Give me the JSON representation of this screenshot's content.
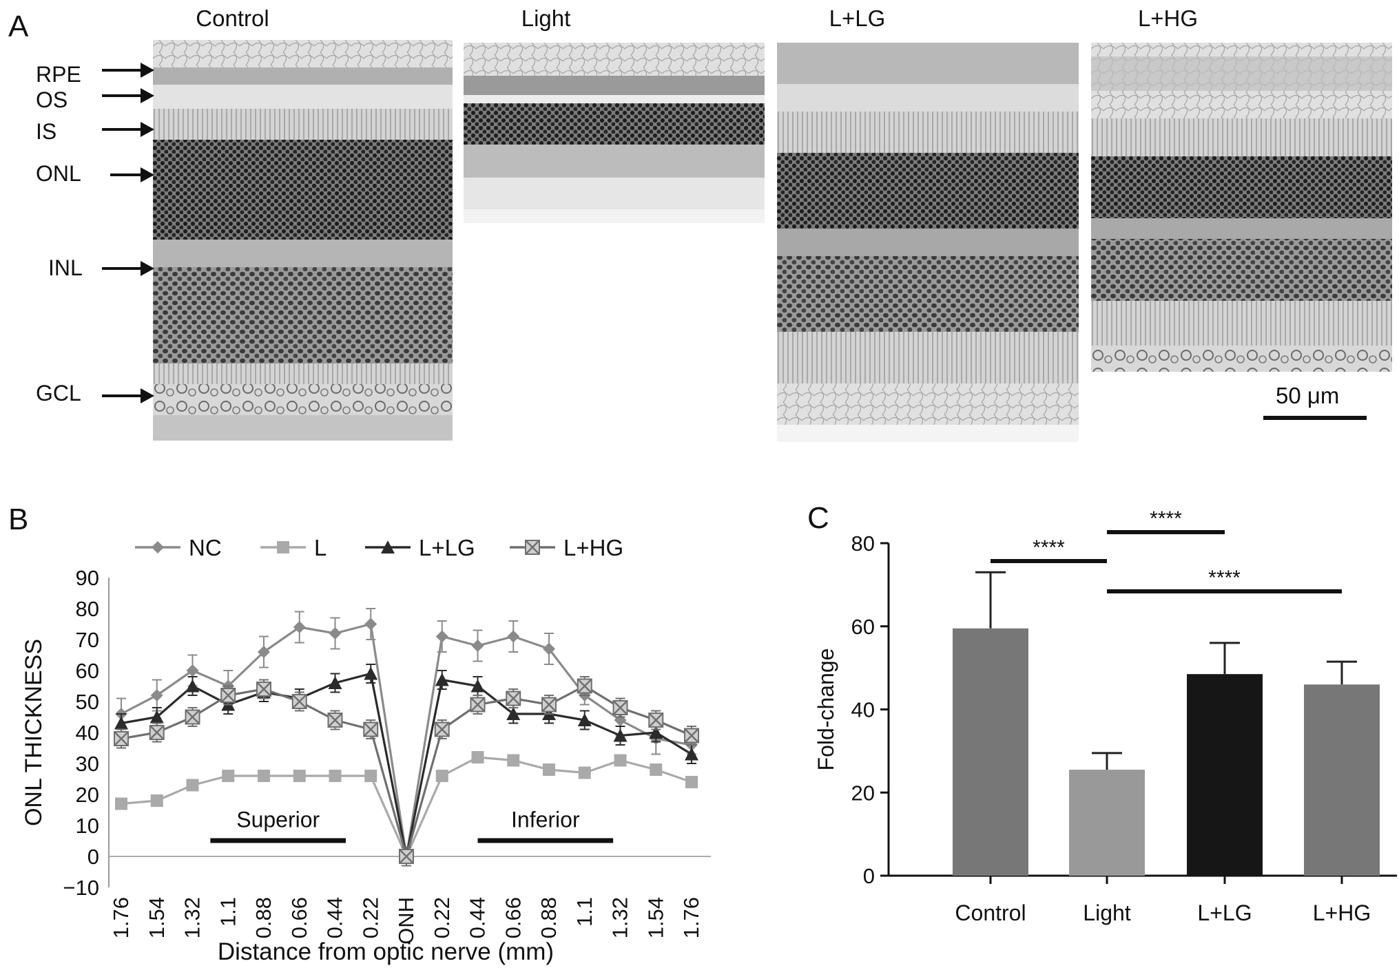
{
  "panel_a": {
    "letter": "A",
    "titles": [
      "Control",
      "Light",
      "L+LG",
      "L+HG"
    ],
    "layers": [
      "RPE",
      "OS",
      "IS",
      "ONL",
      "INL",
      "GCL"
    ],
    "scale_bar": "50 μm"
  },
  "panel_b": {
    "letter": "B",
    "superior_label": "Superior",
    "inferior_label": "Inferior"
  },
  "panel_c": {
    "letter": "C",
    "significance": [
      "****",
      "****",
      "****"
    ]
  },
  "colors": {
    "nc": "#8a8a8a",
    "l": "#a9a9a9",
    "llg": "#2b2b2b",
    "lhg": "#6f6f6f",
    "bar_control": "#777777",
    "bar_light": "#999999",
    "bar_llg": "#161616",
    "bar_lhg": "#777777"
  },
  "chart_data": [
    {
      "type": "line",
      "xlabel": "Distance from optic nerve (mm)",
      "ylabel": "ONL THICKNESS",
      "ylim": [
        -10,
        90
      ],
      "yticks": [
        -10,
        0,
        10,
        20,
        30,
        40,
        50,
        60,
        70,
        80,
        90
      ],
      "categories": [
        "1.76",
        "1.54",
        "1.32",
        "1.1",
        "0.88",
        "0.66",
        "0.44",
        "0.22",
        "ONH",
        "0.22",
        "0.44",
        "0.66",
        "0.88",
        "1.1",
        "1.32",
        "1.54",
        "1.76"
      ],
      "legend_position": "top",
      "series": [
        {
          "name": "NC",
          "marker": "diamond",
          "values": [
            46,
            52,
            60,
            55,
            66,
            74,
            72,
            75,
            0,
            71,
            68,
            71,
            67,
            52,
            44,
            38,
            36
          ],
          "errors": [
            5,
            5,
            5,
            5,
            5,
            5,
            5,
            5,
            3,
            5,
            5,
            5,
            5,
            3,
            5,
            5,
            3
          ]
        },
        {
          "name": "L",
          "marker": "square",
          "values": [
            17,
            18,
            23,
            26,
            26,
            26,
            26,
            26,
            0,
            26,
            32,
            31,
            28,
            27,
            31,
            28,
            24
          ],
          "errors": [
            1,
            1,
            1,
            1,
            1,
            1,
            1,
            1,
            1,
            1,
            1,
            1,
            1,
            1,
            1,
            1,
            1
          ]
        },
        {
          "name": "L+LG",
          "marker": "triangle",
          "values": [
            43,
            45,
            55,
            49,
            53,
            51,
            56,
            59,
            0,
            57,
            55,
            46,
            46,
            44,
            39,
            40,
            33
          ],
          "errors": [
            3,
            3,
            3,
            3,
            3,
            3,
            3,
            3,
            3,
            3,
            3,
            3,
            3,
            3,
            3,
            3,
            3
          ]
        },
        {
          "name": "L+HG",
          "marker": "x-square",
          "values": [
            38,
            40,
            45,
            52,
            54,
            50,
            44,
            41,
            0,
            41,
            49,
            51,
            49,
            55,
            48,
            44,
            39
          ],
          "errors": [
            3,
            3,
            3,
            3,
            3,
            3,
            3,
            3,
            3,
            3,
            3,
            3,
            3,
            3,
            3,
            3,
            3
          ]
        }
      ]
    },
    {
      "type": "bar",
      "ylabel": "Fold-change",
      "ylim": [
        0,
        80
      ],
      "yticks": [
        0,
        20,
        40,
        60,
        80
      ],
      "categories": [
        "Control",
        "Light",
        "L+LG",
        "L+HG"
      ],
      "values": [
        59.5,
        25.5,
        48.5,
        46
      ],
      "errors": [
        13.5,
        4,
        7.5,
        5.5
      ]
    }
  ]
}
